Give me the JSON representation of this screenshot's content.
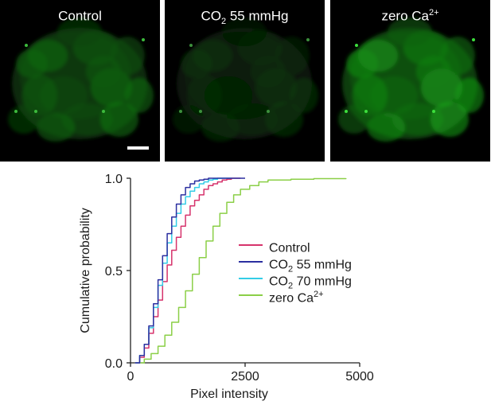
{
  "panels": [
    {
      "label_main": "Control",
      "label_sub": "",
      "label_rest": "",
      "label_sup": "",
      "brightness": 0.55
    },
    {
      "label_main": "CO",
      "label_sub": "2",
      "label_rest": " 55 mmHg",
      "label_sup": "",
      "brightness": 0.2
    },
    {
      "label_main": "zero Ca",
      "label_sub": "",
      "label_rest": "",
      "label_sup": "2+",
      "brightness": 0.85
    }
  ],
  "chart_data": {
    "type": "line",
    "xlabel": "Pixel intensity",
    "ylabel": "Cumulative probability",
    "xlim": [
      0,
      5000
    ],
    "ylim": [
      0,
      1
    ],
    "xticks": [
      "0",
      "2500",
      "5000"
    ],
    "yticks": [
      "0.0",
      "0.5",
      "1.0"
    ],
    "legend_position": "center-right",
    "series": [
      {
        "name": "Control",
        "name_main": "Control",
        "name_sub": "",
        "name_rest": "",
        "name_sup": "",
        "color": "#d6336c",
        "x": [
          100,
          200,
          300,
          400,
          500,
          600,
          700,
          800,
          900,
          1000,
          1100,
          1200,
          1300,
          1400,
          1500,
          1600,
          1700,
          1800,
          1900,
          2000,
          2100,
          2200,
          2300,
          2400
        ],
        "y": [
          0.0,
          0.03,
          0.08,
          0.16,
          0.25,
          0.34,
          0.44,
          0.53,
          0.61,
          0.68,
          0.74,
          0.8,
          0.85,
          0.88,
          0.91,
          0.94,
          0.96,
          0.97,
          0.98,
          0.99,
          0.995,
          1.0,
          1.0,
          1.0
        ]
      },
      {
        "name": "CO2 55 mmHg",
        "name_main": "CO",
        "name_sub": "2",
        "name_rest": " 55 mmHg",
        "name_sup": "",
        "color": "#2b2fa0",
        "x": [
          100,
          200,
          300,
          400,
          500,
          600,
          700,
          800,
          900,
          1000,
          1100,
          1200,
          1300,
          1400,
          1500,
          1600,
          1700,
          1800,
          2000,
          2200,
          2500
        ],
        "y": [
          0.0,
          0.04,
          0.1,
          0.2,
          0.32,
          0.45,
          0.58,
          0.7,
          0.79,
          0.86,
          0.91,
          0.95,
          0.97,
          0.985,
          0.99,
          0.995,
          1.0,
          1.0,
          1.0,
          1.0,
          1.0
        ]
      },
      {
        "name": "CO2 70 mmHg",
        "name_main": "CO",
        "name_sub": "2",
        "name_rest": " 70 mmHg",
        "name_sup": "",
        "color": "#33cde6",
        "x": [
          100,
          200,
          300,
          400,
          500,
          600,
          700,
          800,
          900,
          1000,
          1100,
          1200,
          1300,
          1400,
          1500,
          1600,
          1700,
          1800,
          1900,
          2000,
          2200
        ],
        "y": [
          0.0,
          0.04,
          0.1,
          0.19,
          0.3,
          0.42,
          0.54,
          0.65,
          0.74,
          0.81,
          0.86,
          0.9,
          0.93,
          0.95,
          0.97,
          0.98,
          0.99,
          0.995,
          1.0,
          1.0,
          1.0
        ]
      },
      {
        "name": "zero Ca2+",
        "name_main": "zero Ca",
        "name_sub": "",
        "name_rest": "",
        "name_sup": "2+",
        "color": "#8bcf47",
        "x": [
          150,
          300,
          450,
          600,
          750,
          900,
          1050,
          1200,
          1350,
          1500,
          1650,
          1800,
          1950,
          2100,
          2250,
          2400,
          2600,
          2800,
          3000,
          3500,
          4000,
          4700
        ],
        "y": [
          0.0,
          0.02,
          0.05,
          0.09,
          0.15,
          0.22,
          0.3,
          0.39,
          0.48,
          0.57,
          0.66,
          0.74,
          0.81,
          0.87,
          0.91,
          0.94,
          0.96,
          0.98,
          0.99,
          0.995,
          0.998,
          1.0
        ]
      }
    ]
  }
}
